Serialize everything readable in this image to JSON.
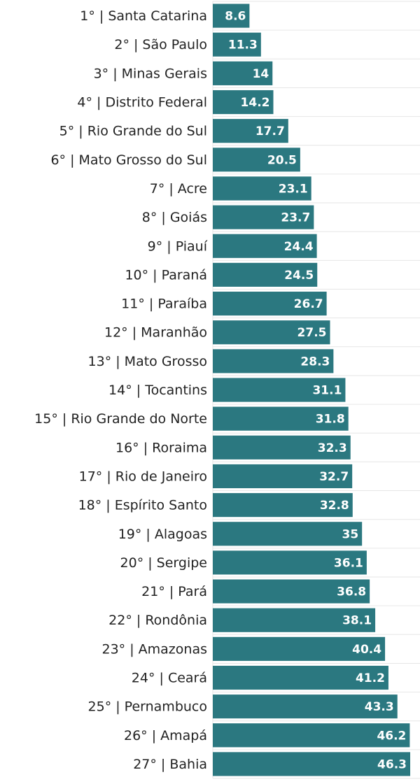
{
  "chart_data": {
    "type": "bar",
    "orientation": "horizontal",
    "color": "#2b7880",
    "categories": [
      "1° | Santa Catarina",
      "2° | São Paulo",
      "3° | Minas Gerais",
      "4° | Distrito Federal",
      "5° | Rio Grande do Sul",
      "6° | Mato Grosso do Sul",
      "7° | Acre",
      "8° | Goiás",
      "9° | Piauí",
      "10° | Paraná",
      "11° | Paraíba",
      "12° | Maranhão",
      "13° | Mato Grosso",
      "14° | Tocantins",
      "15° | Rio Grande do Norte",
      "16° | Roraima",
      "17° | Rio de Janeiro",
      "18° | Espírito Santo",
      "19° | Alagoas",
      "20° | Sergipe",
      "21° | Pará",
      "22° | Rondônia",
      "23° | Amazonas",
      "24° | Ceará",
      "25° | Pernambuco",
      "26° | Amapá",
      "27° | Bahia"
    ],
    "values": [
      8.6,
      11.3,
      14,
      14.2,
      17.7,
      20.5,
      23.1,
      23.7,
      24.4,
      24.5,
      26.7,
      27.5,
      28.3,
      31.1,
      31.8,
      32.3,
      32.7,
      32.8,
      35,
      36.1,
      36.8,
      38.1,
      40.4,
      41.2,
      43.3,
      46.2,
      46.3
    ]
  }
}
